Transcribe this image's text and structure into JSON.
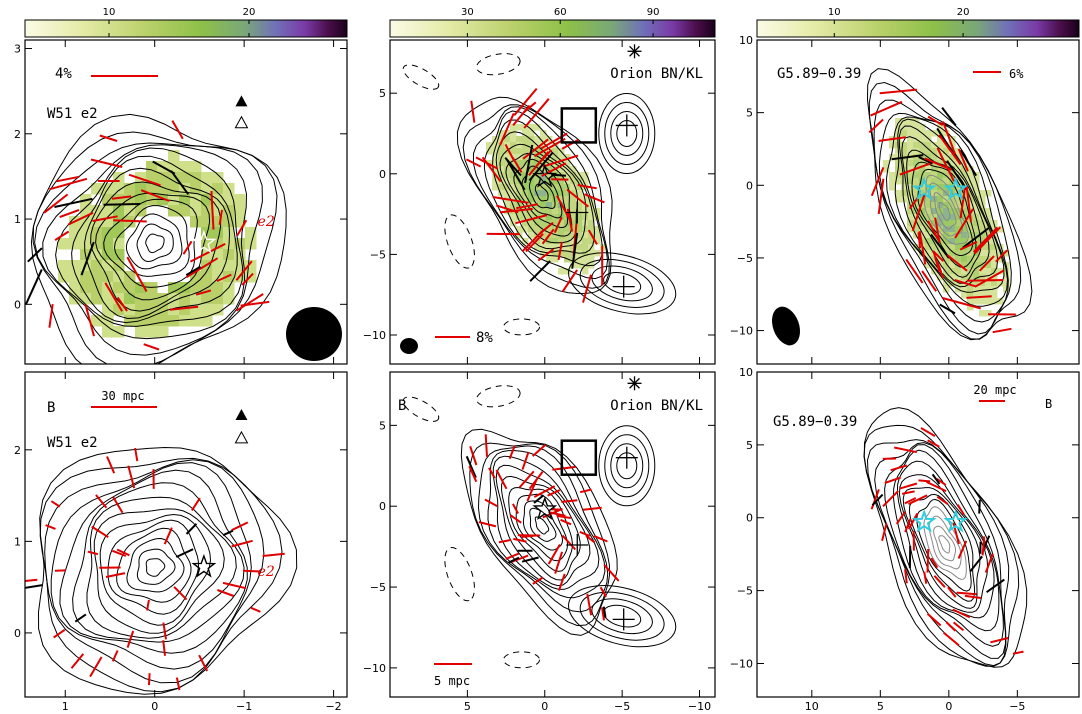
{
  "chart_data": [
    {
      "type": "polarization-map",
      "source": "W51 e2",
      "row": "top",
      "panel_label": "",
      "scale_text": "4%",
      "colorbar_ticks": [
        "10",
        "20"
      ],
      "colorbar_range": [
        4,
        27
      ],
      "x_ticks": [
        1,
        0,
        -1,
        -2
      ],
      "x_tick_labels": [
        "1",
        "0",
        "−1",
        "−2"
      ],
      "y_ticks": [
        0,
        1,
        2,
        3
      ],
      "y_tick_labels": [
        "0",
        "1",
        "2",
        "3"
      ],
      "xlim": [
        1.45,
        -2.15
      ],
      "ylim": [
        -0.7,
        3.1
      ],
      "annotation": "e2",
      "markers": [
        {
          "kind": "star",
          "x": -0.55,
          "y": 0.72
        },
        {
          "kind": "filled-triangle",
          "x": -0.97,
          "y": 2.38
        },
        {
          "kind": "open-triangle",
          "x": -0.97,
          "y": 2.13
        }
      ]
    },
    {
      "type": "polarization-map",
      "source": "Orion BN/KL",
      "row": "top",
      "panel_label": "",
      "scale_text": "8%",
      "colorbar_ticks": [
        "30",
        "60",
        "90"
      ],
      "colorbar_range": [
        5,
        110
      ],
      "x_ticks": [
        5,
        0,
        -5,
        -10
      ],
      "x_tick_labels": [
        "5",
        "0",
        "−5",
        "−10"
      ],
      "y_ticks": [
        -10,
        -5,
        0,
        5
      ],
      "y_tick_labels": [
        "−10",
        "−5",
        "0",
        "5"
      ],
      "xlim": [
        10,
        -11
      ],
      "ylim": [
        -11.8,
        8.3
      ],
      "markers": [
        {
          "kind": "asterisk",
          "x": -5.8,
          "y": 7.6
        },
        {
          "kind": "open-square",
          "x": -2.2,
          "y": 3.0
        },
        {
          "kind": "plus",
          "x": -5.3,
          "y": 3.0
        },
        {
          "kind": "plus",
          "x": -2.1,
          "y": -2.4
        },
        {
          "kind": "plus",
          "x": -5.1,
          "y": -7.0
        },
        {
          "kind": "star",
          "x": 0.0,
          "y": -0.2
        }
      ]
    },
    {
      "type": "polarization-map",
      "source": "G5.89−0.39",
      "row": "top",
      "panel_label": "",
      "scale_text": "6%",
      "colorbar_ticks": [
        "10",
        "20"
      ],
      "colorbar_range": [
        4,
        29
      ],
      "x_ticks": [
        10,
        5,
        0,
        -5
      ],
      "x_tick_labels": [
        "10",
        "5",
        "0",
        "−5"
      ],
      "y_ticks": [
        -10,
        -5,
        0,
        5,
        10
      ],
      "y_tick_labels": [
        "−10",
        "−5",
        "0",
        "5",
        "10"
      ],
      "xlim": [
        14,
        -9.5
      ],
      "ylim": [
        -12.3,
        10
      ],
      "markers": [
        {
          "kind": "cyan-star",
          "x": 1.8,
          "y": -0.3
        },
        {
          "kind": "cyan-star",
          "x": -0.5,
          "y": -0.3
        }
      ]
    },
    {
      "type": "polarization-map",
      "source": "W51 e2",
      "row": "bottom",
      "panel_label": "B",
      "scale_text": "30 mpc",
      "x_ticks": [
        1,
        0,
        -1,
        -2
      ],
      "x_tick_labels": [
        "1",
        "0",
        "−1",
        "−2"
      ],
      "y_ticks": [
        0,
        1,
        2
      ],
      "y_tick_labels": [
        "0",
        "1",
        "2"
      ],
      "xlim": [
        1.45,
        -2.15
      ],
      "ylim": [
        -0.7,
        2.85
      ],
      "annotation": "e2",
      "markers": [
        {
          "kind": "star",
          "x": -0.55,
          "y": 0.72
        },
        {
          "kind": "filled-triangle",
          "x": -0.97,
          "y": 2.38
        },
        {
          "kind": "open-triangle",
          "x": -0.97,
          "y": 2.13
        }
      ]
    },
    {
      "type": "polarization-map",
      "source": "Orion BN/KL",
      "row": "bottom",
      "panel_label": "B",
      "scale_text": "5 mpc",
      "x_ticks": [
        5,
        0,
        -5,
        -10
      ],
      "x_tick_labels": [
        "5",
        "0",
        "−5",
        "−10"
      ],
      "y_ticks": [
        -10,
        -5,
        0,
        5
      ],
      "y_tick_labels": [
        "−10",
        "−5",
        "0",
        "5"
      ],
      "xlim": [
        10,
        -11
      ],
      "ylim": [
        -11.8,
        8.3
      ],
      "markers": [
        {
          "kind": "asterisk",
          "x": -5.8,
          "y": 7.6
        },
        {
          "kind": "open-square",
          "x": -2.2,
          "y": 3.0
        },
        {
          "kind": "plus",
          "x": -5.3,
          "y": 3.0
        },
        {
          "kind": "plus",
          "x": -2.1,
          "y": -2.4
        },
        {
          "kind": "plus",
          "x": -5.1,
          "y": -7.0
        },
        {
          "kind": "star",
          "x": 0.0,
          "y": -0.2
        }
      ]
    },
    {
      "type": "polarization-map",
      "source": "G5.89−0.39",
      "row": "bottom",
      "panel_label": "B",
      "scale_text": "20 mpc",
      "x_ticks": [
        10,
        5,
        0,
        -5
      ],
      "x_tick_labels": [
        "10",
        "5",
        "0",
        "−5"
      ],
      "y_ticks": [
        -10,
        -5,
        0,
        5,
        10
      ],
      "y_tick_labels": [
        "−10",
        "−5",
        "0",
        "5",
        "10"
      ],
      "xlim": [
        14,
        -9.5
      ],
      "ylim": [
        -12.3,
        10
      ],
      "markers": [
        {
          "kind": "cyan-star",
          "x": 1.8,
          "y": -0.3
        },
        {
          "kind": "cyan-star",
          "x": -0.5,
          "y": -0.3
        }
      ]
    }
  ],
  "colors": {
    "vector_red": "#e00000",
    "vector_black": "#000000",
    "colormap": [
      "#fbfbe6",
      "#e4eba6",
      "#b9d06a",
      "#8dc048",
      "#7aa878",
      "#7070b8",
      "#7a3aa6",
      "#4c0f4c",
      "#1a001a"
    ],
    "cyan_star": "#33ccdd"
  }
}
